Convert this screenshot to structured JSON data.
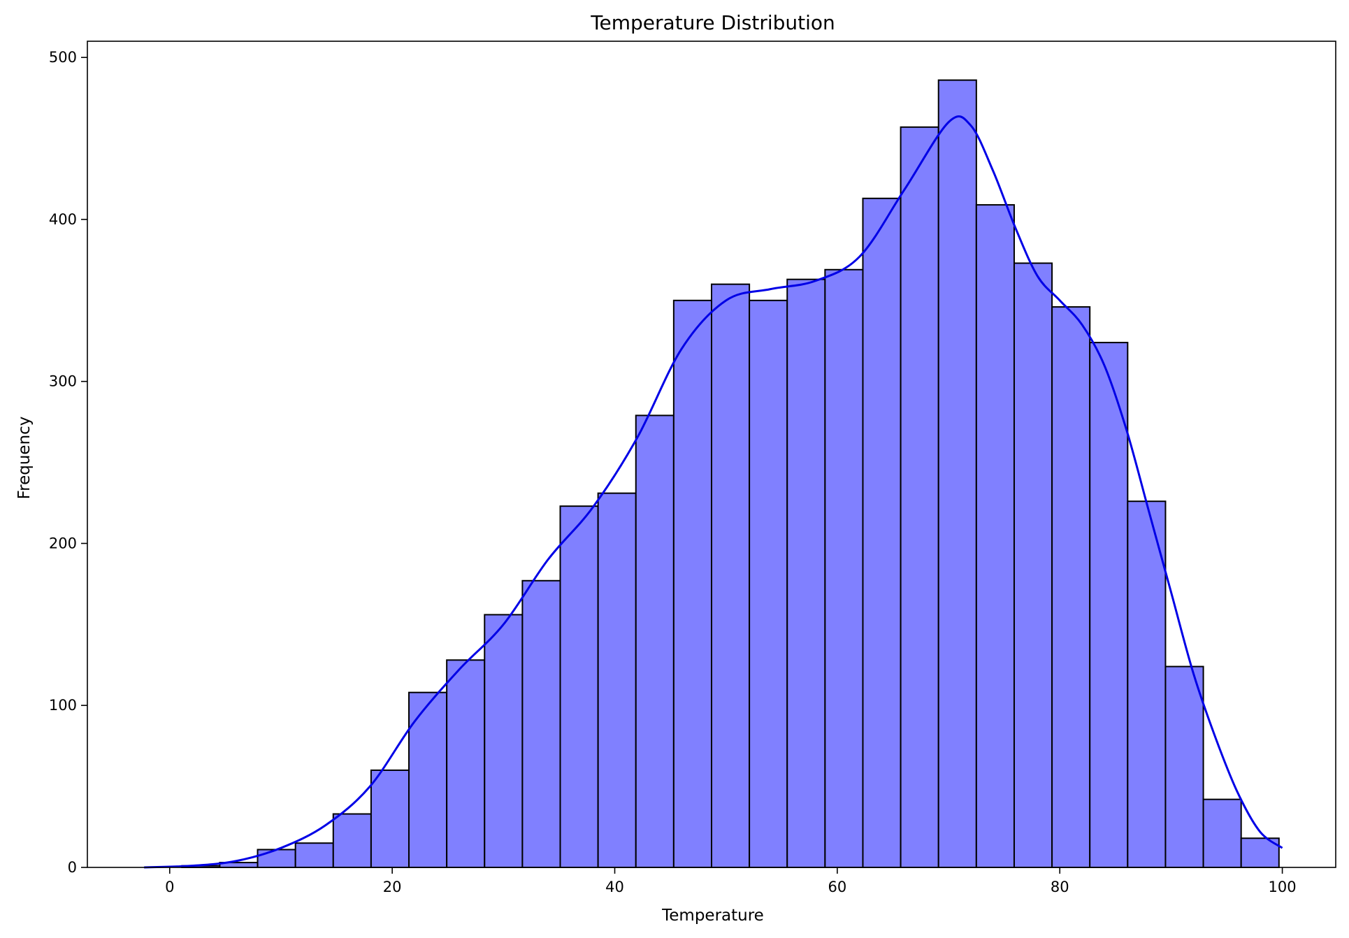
{
  "chart_data": {
    "type": "bar",
    "title": "Temperature Distribution",
    "xlabel": "Temperature",
    "ylabel": "Frequency",
    "bin_edges": [
      -2.3,
      1.1,
      4.5,
      7.9,
      11.3,
      14.7,
      18.1,
      21.5,
      24.9,
      28.3,
      31.7,
      35.1,
      38.5,
      41.9,
      45.3,
      48.7,
      52.1,
      55.5,
      58.9,
      62.3,
      65.7,
      69.1,
      72.5,
      75.9,
      79.3,
      82.7,
      86.1,
      89.5,
      92.9,
      96.3,
      99.7
    ],
    "values": [
      0,
      1,
      3,
      11,
      15,
      33,
      60,
      108,
      128,
      156,
      177,
      223,
      231,
      279,
      350,
      360,
      350,
      363,
      369,
      413,
      457,
      486,
      409,
      373,
      346,
      324,
      226,
      124,
      42,
      18
    ],
    "kde": {
      "x": [
        -2.3,
        2,
        6,
        10,
        14,
        18,
        22,
        26,
        30,
        34,
        38,
        42,
        46,
        50,
        54,
        58,
        62,
        66,
        70,
        72,
        74,
        76,
        78,
        80,
        82,
        84,
        86,
        88,
        90,
        92,
        94,
        96,
        98,
        100
      ],
      "y": [
        0,
        1,
        4,
        12,
        26,
        50,
        90,
        122,
        150,
        190,
        222,
        265,
        320,
        350,
        357,
        362,
        377,
        418,
        460,
        458,
        430,
        395,
        365,
        350,
        335,
        310,
        270,
        220,
        170,
        120,
        80,
        46,
        22,
        12
      ]
    },
    "xlim": [
      -7.4,
      104.8
    ],
    "ylim": [
      0,
      510
    ],
    "xticks": [
      0,
      20,
      40,
      60,
      80,
      100
    ],
    "yticks": [
      0,
      100,
      200,
      300,
      400,
      500
    ],
    "bar_color": "#8080ff",
    "edge_color": "#000000",
    "kde_color": "#0000e6",
    "grid": false,
    "legend": "none"
  }
}
